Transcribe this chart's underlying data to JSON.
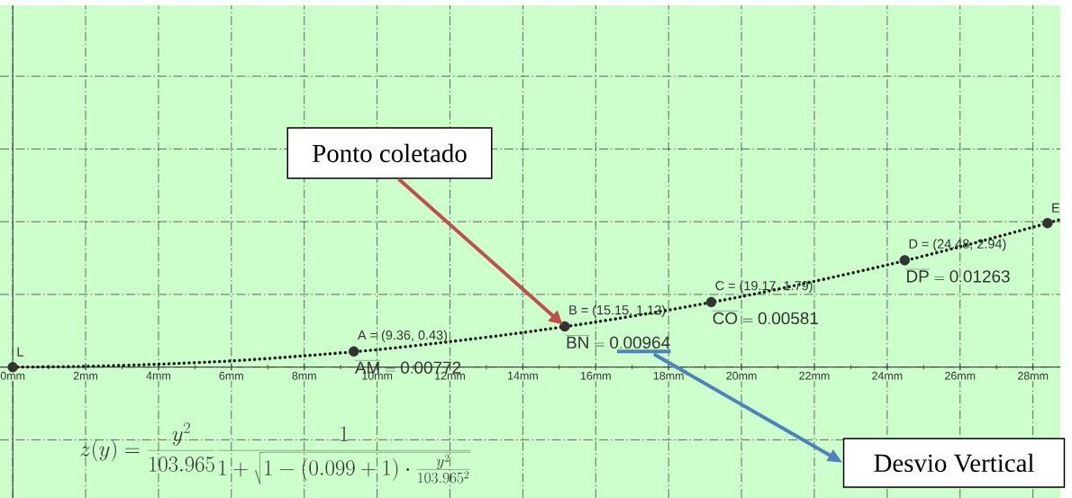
{
  "chart_data": {
    "type": "line",
    "xlim": [
      -0.35,
      28.75
    ],
    "ylim": [
      -3.6,
      9.95
    ],
    "xticks": [
      {
        "value": 0,
        "label": "0mm"
      },
      {
        "value": 2,
        "label": "2mm"
      },
      {
        "value": 4,
        "label": "4mm"
      },
      {
        "value": 6,
        "label": "6mm"
      },
      {
        "value": 8,
        "label": "8mm"
      },
      {
        "value": 10,
        "label": "10mm"
      },
      {
        "value": 12,
        "label": "12mm"
      },
      {
        "value": 14,
        "label": "14mm"
      },
      {
        "value": 16,
        "label": "16mm"
      },
      {
        "value": 18,
        "label": "18mm"
      },
      {
        "value": 20,
        "label": "20mm"
      },
      {
        "value": 22,
        "label": "22mm"
      },
      {
        "value": 24,
        "label": "24mm"
      },
      {
        "value": 26,
        "label": "26mm"
      },
      {
        "value": 28,
        "label": "28mm"
      }
    ],
    "yticks": [
      {
        "value": -2,
        "label": null
      },
      {
        "value": 0,
        "label": null
      },
      {
        "value": 2,
        "label": null
      },
      {
        "value": 4,
        "label": null
      },
      {
        "value": 6,
        "label": null
      },
      {
        "value": 8,
        "label": null
      }
    ],
    "tick_labels": "x",
    "grid": true,
    "series": [
      {
        "color": "#1a1a1a",
        "line_style": "dotted",
        "marker": "none",
        "x": [
          0,
          2,
          4,
          6,
          8,
          10,
          12,
          14,
          16,
          18,
          20,
          22,
          24,
          26,
          28,
          28.75
        ],
        "values": [
          0,
          0.02,
          0.08,
          0.17,
          0.31,
          0.48,
          0.7,
          0.95,
          1.24,
          1.57,
          1.94,
          2.36,
          2.81,
          3.31,
          3.85,
          4.06
        ]
      },
      {
        "type": "scatter",
        "color": "#333333",
        "marker": "circle",
        "x": [
          0,
          9.36,
          15.15,
          19.17,
          24.48,
          28.4
        ],
        "values": [
          0,
          0.43,
          1.12,
          1.79,
          2.94,
          3.96
        ],
        "value_labels": [
          null,
          "A = (9.36, 0.43)",
          "B = (15.15, 1.12)",
          "C = (19.17, 1.79)",
          "D = (24.48, 2.94)",
          null
        ]
      }
    ],
    "annotations": [
      {
        "text": "L",
        "x": 0,
        "y": 0
      },
      {
        "text": "E",
        "x": 28.4,
        "y": 3.96
      },
      {
        "text": "\\overline{\\mathrm{AM}} = \\mathrm{0.00772}",
        "x": 9.36,
        "y": 0.43
      },
      {
        "text": "\\overline{\\mathrm{BN}} = \\mathrm{0.00964}",
        "x": 15.15,
        "y": 1.12
      },
      {
        "text": "\\overline{\\mathrm{CO}} = \\mathrm{0.00581}",
        "x": 19.17,
        "y": 1.79
      },
      {
        "text": "\\overline{\\mathrm{DP}} = \\mathrm{0.01263}",
        "x": 24.48,
        "y": 2.94
      },
      "z(y) = \\frac{y^2}{103.965} \\frac{1}{1 + \\sqrt{1 - (0.099 + 1) \\cdot \\frac{y^2}{103.965^2}}}",
      "Ponto coletado",
      "Desvio Vertical"
    ]
  }
}
